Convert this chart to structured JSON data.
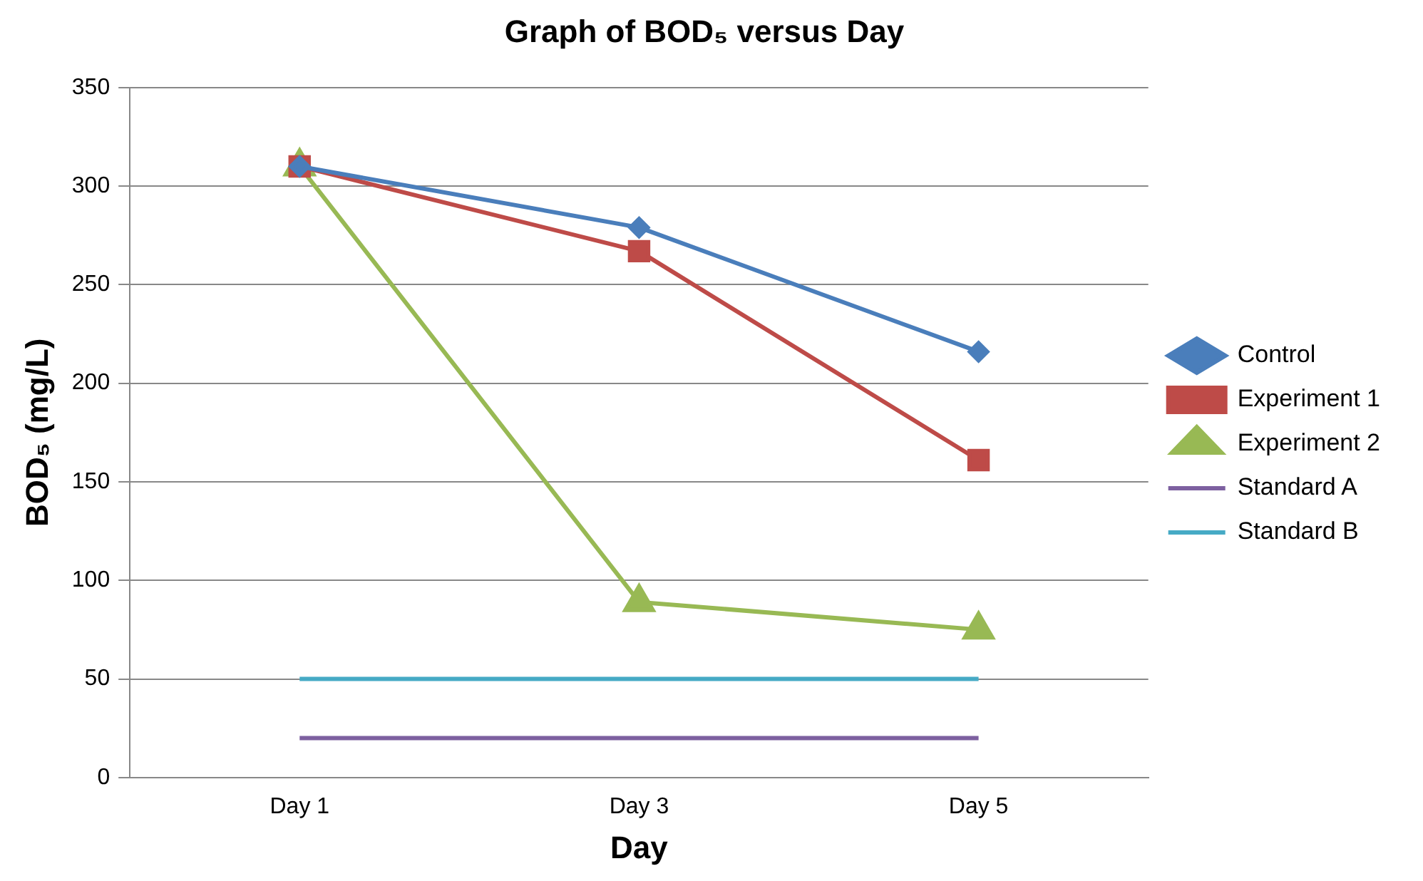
{
  "chart_data": {
    "type": "line",
    "title": "Graph of BOD₅ versus Day",
    "xlabel": "Day",
    "ylabel": "BOD₅ (mg/L)",
    "categories": [
      "Day 1",
      "Day 3",
      "Day 5"
    ],
    "series": [
      {
        "name": "Control",
        "color": "#4a7ebb",
        "values": [
          310,
          279,
          216
        ],
        "marker": "diamond"
      },
      {
        "name": "Experiment 1",
        "color": "#be4b48",
        "values": [
          310,
          267,
          161
        ],
        "marker": "square"
      },
      {
        "name": "Experiment 2",
        "color": "#98b954",
        "values": [
          310,
          89,
          75
        ],
        "marker": "triangle"
      },
      {
        "name": "Standard A",
        "color": "#7d60a0",
        "values": [
          20,
          20,
          20
        ],
        "marker": "none"
      },
      {
        "name": "Standard B",
        "color": "#46aac5",
        "values": [
          50,
          50,
          50
        ],
        "marker": "none"
      }
    ],
    "ylim": [
      0,
      350
    ],
    "yticks": [
      0,
      50,
      100,
      150,
      200,
      250,
      300,
      350
    ],
    "grid": "y",
    "legend": "right",
    "line_style": "solid"
  }
}
